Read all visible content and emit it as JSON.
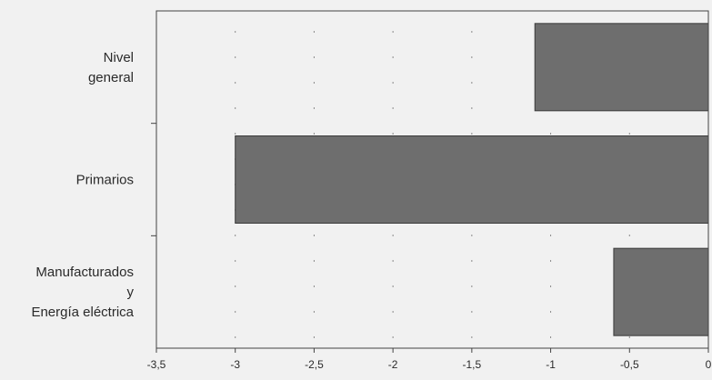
{
  "chart_data": {
    "type": "bar",
    "orientation": "horizontal",
    "title": "",
    "xlabel": "",
    "ylabel": "",
    "categories": [
      [
        "Nivel",
        "general"
      ],
      [
        "Primarios"
      ],
      [
        "Manufacturados",
        "y",
        "Energía eléctrica"
      ]
    ],
    "values": [
      -1.1,
      -3.0,
      -0.6
    ],
    "xlim": [
      -3.5,
      0
    ],
    "xticks": [
      -3.5,
      -3,
      -2.5,
      -2,
      -1.5,
      -1,
      -0.5,
      0
    ],
    "xtick_labels": [
      "-3,5",
      "-3",
      "-2,5",
      "-2",
      "-1,5",
      "-1",
      "-0,5",
      "0"
    ],
    "grid": true,
    "colors": {
      "bar": "#6e6e6e",
      "background": "#f1f1f1"
    }
  }
}
